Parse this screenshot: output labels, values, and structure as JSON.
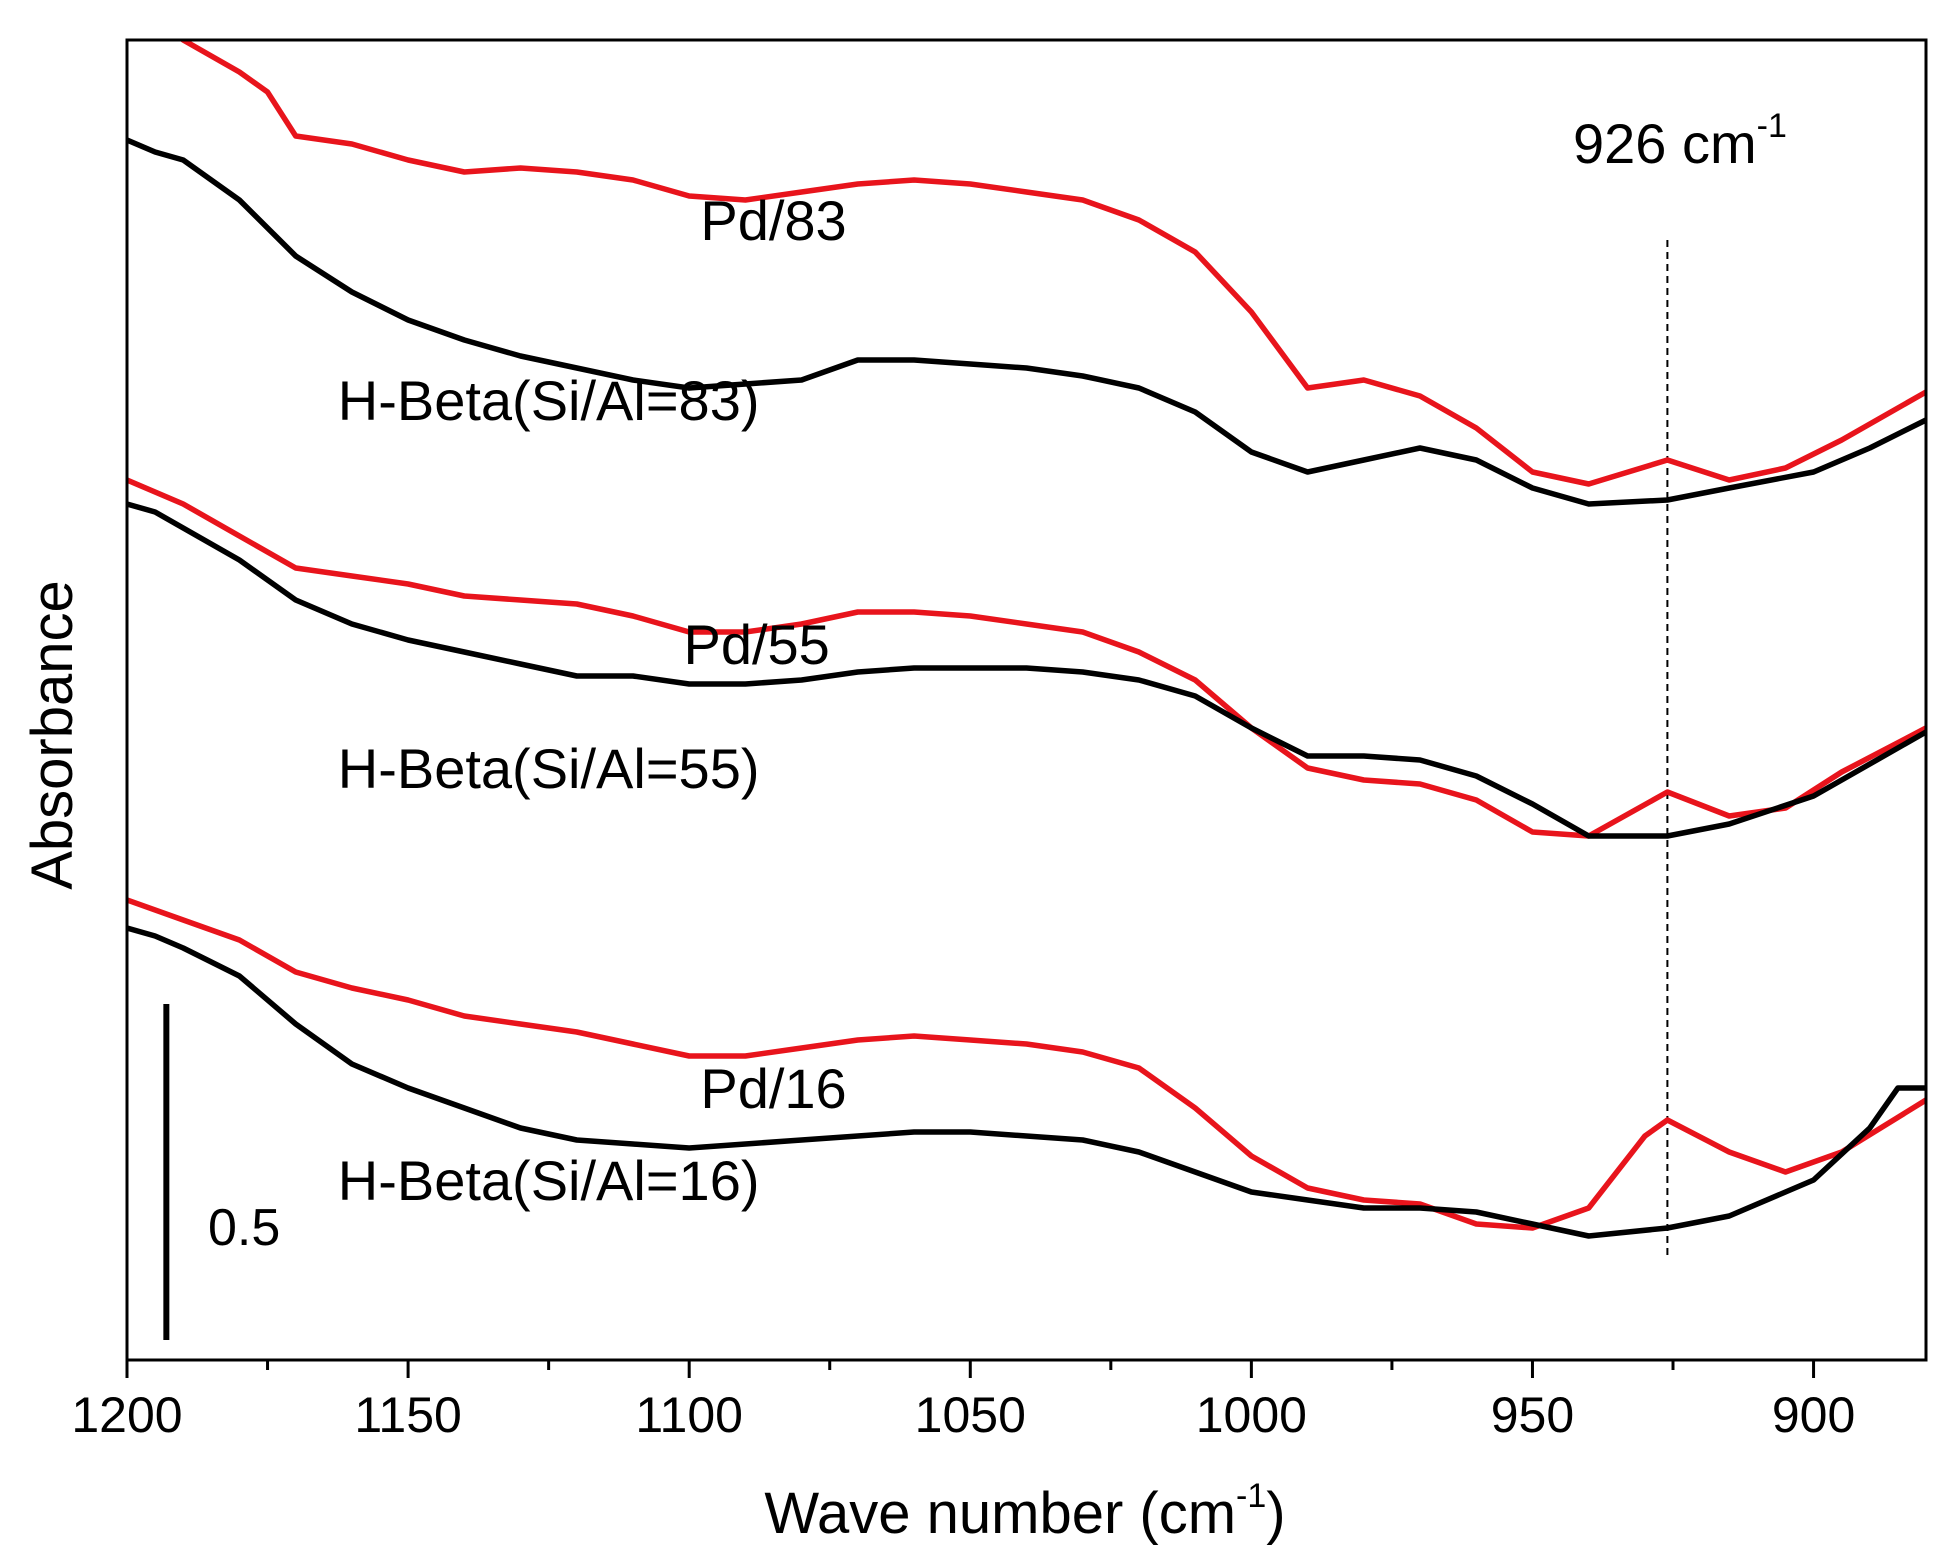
{
  "chart_data": {
    "type": "line",
    "title": "",
    "xlabel": "Wave number (cm",
    "xlabel_sup": "-1",
    "xlabel_close": ")",
    "ylabel": "Absorbance",
    "xlim": [
      1200,
      880
    ],
    "ylim": [
      0,
      3.3
    ],
    "x_reversed": true,
    "x_ticks": [
      1200,
      1150,
      1100,
      1050,
      1000,
      950,
      900
    ],
    "x_tick_labels": [
      "1200",
      "1150",
      "1100",
      "1050",
      "1000",
      "950",
      "900"
    ],
    "x_minor_step": 25,
    "y_ticks_shown": false,
    "grid": false,
    "annotations": {
      "reference_line": {
        "x": 926,
        "y_from": 0.25,
        "y_to": 2.8,
        "style": "dashed"
      },
      "reference_label": "926 cm",
      "reference_label_sup": "-1",
      "scale_bar": {
        "x": 1193,
        "y_from": 0.05,
        "y_to": 0.89,
        "value_span": 0.5
      },
      "scale_bar_label": "0.5"
    },
    "series": [
      {
        "name": "Pd/83",
        "label": "Pd/83",
        "color": "#e8141c",
        "label_pos": {
          "x": 1085,
          "y": 2.8
        },
        "points": [
          [
            1190,
            3.3
          ],
          [
            1180,
            3.22
          ],
          [
            1175,
            3.17
          ],
          [
            1170,
            3.06
          ],
          [
            1160,
            3.04
          ],
          [
            1150,
            3.0
          ],
          [
            1140,
            2.97
          ],
          [
            1130,
            2.98
          ],
          [
            1120,
            2.97
          ],
          [
            1110,
            2.95
          ],
          [
            1100,
            2.91
          ],
          [
            1090,
            2.9
          ],
          [
            1080,
            2.92
          ],
          [
            1070,
            2.94
          ],
          [
            1060,
            2.95
          ],
          [
            1050,
            2.94
          ],
          [
            1040,
            2.92
          ],
          [
            1030,
            2.9
          ],
          [
            1020,
            2.85
          ],
          [
            1010,
            2.77
          ],
          [
            1000,
            2.62
          ],
          [
            990,
            2.43
          ],
          [
            980,
            2.45
          ],
          [
            970,
            2.41
          ],
          [
            960,
            2.33
          ],
          [
            950,
            2.22
          ],
          [
            940,
            2.19
          ],
          [
            926,
            2.25
          ],
          [
            915,
            2.2
          ],
          [
            905,
            2.23
          ],
          [
            895,
            2.3
          ],
          [
            880,
            2.42
          ]
        ]
      },
      {
        "name": "H-Beta(Si/Al=83)",
        "label": "H-Beta(Si/Al=83)",
        "color": "#000000",
        "label_pos": {
          "x": 1125,
          "y": 2.35
        },
        "points": [
          [
            1200,
            3.05
          ],
          [
            1195,
            3.02
          ],
          [
            1190,
            3.0
          ],
          [
            1180,
            2.9
          ],
          [
            1170,
            2.76
          ],
          [
            1160,
            2.67
          ],
          [
            1150,
            2.6
          ],
          [
            1140,
            2.55
          ],
          [
            1130,
            2.51
          ],
          [
            1120,
            2.48
          ],
          [
            1110,
            2.45
          ],
          [
            1100,
            2.43
          ],
          [
            1090,
            2.44
          ],
          [
            1080,
            2.45
          ],
          [
            1070,
            2.5
          ],
          [
            1060,
            2.5
          ],
          [
            1050,
            2.49
          ],
          [
            1040,
            2.48
          ],
          [
            1030,
            2.46
          ],
          [
            1020,
            2.43
          ],
          [
            1010,
            2.37
          ],
          [
            1000,
            2.27
          ],
          [
            990,
            2.22
          ],
          [
            980,
            2.25
          ],
          [
            970,
            2.28
          ],
          [
            960,
            2.25
          ],
          [
            950,
            2.18
          ],
          [
            940,
            2.14
          ],
          [
            926,
            2.15
          ],
          [
            915,
            2.18
          ],
          [
            900,
            2.22
          ],
          [
            890,
            2.28
          ],
          [
            880,
            2.35
          ]
        ]
      },
      {
        "name": "Pd/55",
        "label": "Pd/55",
        "color": "#e8141c",
        "label_pos": {
          "x": 1088,
          "y": 1.74
        },
        "points": [
          [
            1200,
            2.2
          ],
          [
            1190,
            2.14
          ],
          [
            1180,
            2.06
          ],
          [
            1170,
            1.98
          ],
          [
            1160,
            1.96
          ],
          [
            1150,
            1.94
          ],
          [
            1140,
            1.91
          ],
          [
            1130,
            1.9
          ],
          [
            1120,
            1.89
          ],
          [
            1110,
            1.86
          ],
          [
            1100,
            1.82
          ],
          [
            1090,
            1.82
          ],
          [
            1080,
            1.84
          ],
          [
            1070,
            1.87
          ],
          [
            1060,
            1.87
          ],
          [
            1050,
            1.86
          ],
          [
            1040,
            1.84
          ],
          [
            1030,
            1.82
          ],
          [
            1020,
            1.77
          ],
          [
            1010,
            1.7
          ],
          [
            1000,
            1.58
          ],
          [
            990,
            1.48
          ],
          [
            980,
            1.45
          ],
          [
            970,
            1.44
          ],
          [
            960,
            1.4
          ],
          [
            950,
            1.32
          ],
          [
            940,
            1.31
          ],
          [
            926,
            1.42
          ],
          [
            915,
            1.36
          ],
          [
            905,
            1.38
          ],
          [
            895,
            1.47
          ],
          [
            880,
            1.58
          ]
        ]
      },
      {
        "name": "H-Beta(Si/Al=55)",
        "label": "H-Beta(Si/Al=55)",
        "color": "#000000",
        "label_pos": {
          "x": 1125,
          "y": 1.43
        },
        "points": [
          [
            1200,
            2.14
          ],
          [
            1195,
            2.12
          ],
          [
            1190,
            2.08
          ],
          [
            1180,
            2.0
          ],
          [
            1170,
            1.9
          ],
          [
            1160,
            1.84
          ],
          [
            1150,
            1.8
          ],
          [
            1140,
            1.77
          ],
          [
            1130,
            1.74
          ],
          [
            1120,
            1.71
          ],
          [
            1110,
            1.71
          ],
          [
            1100,
            1.69
          ],
          [
            1090,
            1.69
          ],
          [
            1080,
            1.7
          ],
          [
            1070,
            1.72
          ],
          [
            1060,
            1.73
          ],
          [
            1050,
            1.73
          ],
          [
            1040,
            1.73
          ],
          [
            1030,
            1.72
          ],
          [
            1020,
            1.7
          ],
          [
            1010,
            1.66
          ],
          [
            1000,
            1.58
          ],
          [
            990,
            1.51
          ],
          [
            980,
            1.51
          ],
          [
            970,
            1.5
          ],
          [
            960,
            1.46
          ],
          [
            950,
            1.39
          ],
          [
            940,
            1.31
          ],
          [
            926,
            1.31
          ],
          [
            915,
            1.34
          ],
          [
            900,
            1.41
          ],
          [
            890,
            1.49
          ],
          [
            880,
            1.57
          ]
        ]
      },
      {
        "name": "Pd/16",
        "label": "Pd/16",
        "color": "#e8141c",
        "label_pos": {
          "x": 1085,
          "y": 0.63
        },
        "points": [
          [
            1200,
            1.15
          ],
          [
            1190,
            1.1
          ],
          [
            1180,
            1.05
          ],
          [
            1170,
            0.97
          ],
          [
            1160,
            0.93
          ],
          [
            1150,
            0.9
          ],
          [
            1140,
            0.86
          ],
          [
            1130,
            0.84
          ],
          [
            1120,
            0.82
          ],
          [
            1110,
            0.79
          ],
          [
            1100,
            0.76
          ],
          [
            1090,
            0.76
          ],
          [
            1080,
            0.78
          ],
          [
            1070,
            0.8
          ],
          [
            1060,
            0.81
          ],
          [
            1050,
            0.8
          ],
          [
            1040,
            0.79
          ],
          [
            1030,
            0.77
          ],
          [
            1020,
            0.73
          ],
          [
            1010,
            0.63
          ],
          [
            1000,
            0.51
          ],
          [
            990,
            0.43
          ],
          [
            980,
            0.4
          ],
          [
            970,
            0.39
          ],
          [
            960,
            0.34
          ],
          [
            950,
            0.33
          ],
          [
            940,
            0.38
          ],
          [
            930,
            0.56
          ],
          [
            926,
            0.6
          ],
          [
            915,
            0.52
          ],
          [
            905,
            0.47
          ],
          [
            895,
            0.52
          ],
          [
            880,
            0.65
          ]
        ]
      },
      {
        "name": "H-Beta(Si/Al=16)",
        "label": "H-Beta(Si/Al=16)",
        "color": "#000000",
        "label_pos": {
          "x": 1125,
          "y": 0.4
        },
        "points": [
          [
            1200,
            1.08
          ],
          [
            1195,
            1.06
          ],
          [
            1190,
            1.03
          ],
          [
            1180,
            0.96
          ],
          [
            1170,
            0.84
          ],
          [
            1160,
            0.74
          ],
          [
            1150,
            0.68
          ],
          [
            1140,
            0.63
          ],
          [
            1130,
            0.58
          ],
          [
            1120,
            0.55
          ],
          [
            1110,
            0.54
          ],
          [
            1100,
            0.53
          ],
          [
            1090,
            0.54
          ],
          [
            1080,
            0.55
          ],
          [
            1070,
            0.56
          ],
          [
            1060,
            0.57
          ],
          [
            1050,
            0.57
          ],
          [
            1040,
            0.56
          ],
          [
            1030,
            0.55
          ],
          [
            1020,
            0.52
          ],
          [
            1010,
            0.47
          ],
          [
            1000,
            0.42
          ],
          [
            990,
            0.4
          ],
          [
            980,
            0.38
          ],
          [
            970,
            0.38
          ],
          [
            960,
            0.37
          ],
          [
            950,
            0.34
          ],
          [
            940,
            0.31
          ],
          [
            926,
            0.33
          ],
          [
            915,
            0.36
          ],
          [
            900,
            0.45
          ],
          [
            890,
            0.58
          ],
          [
            885,
            0.68
          ],
          [
            880,
            0.68
          ]
        ]
      }
    ]
  }
}
